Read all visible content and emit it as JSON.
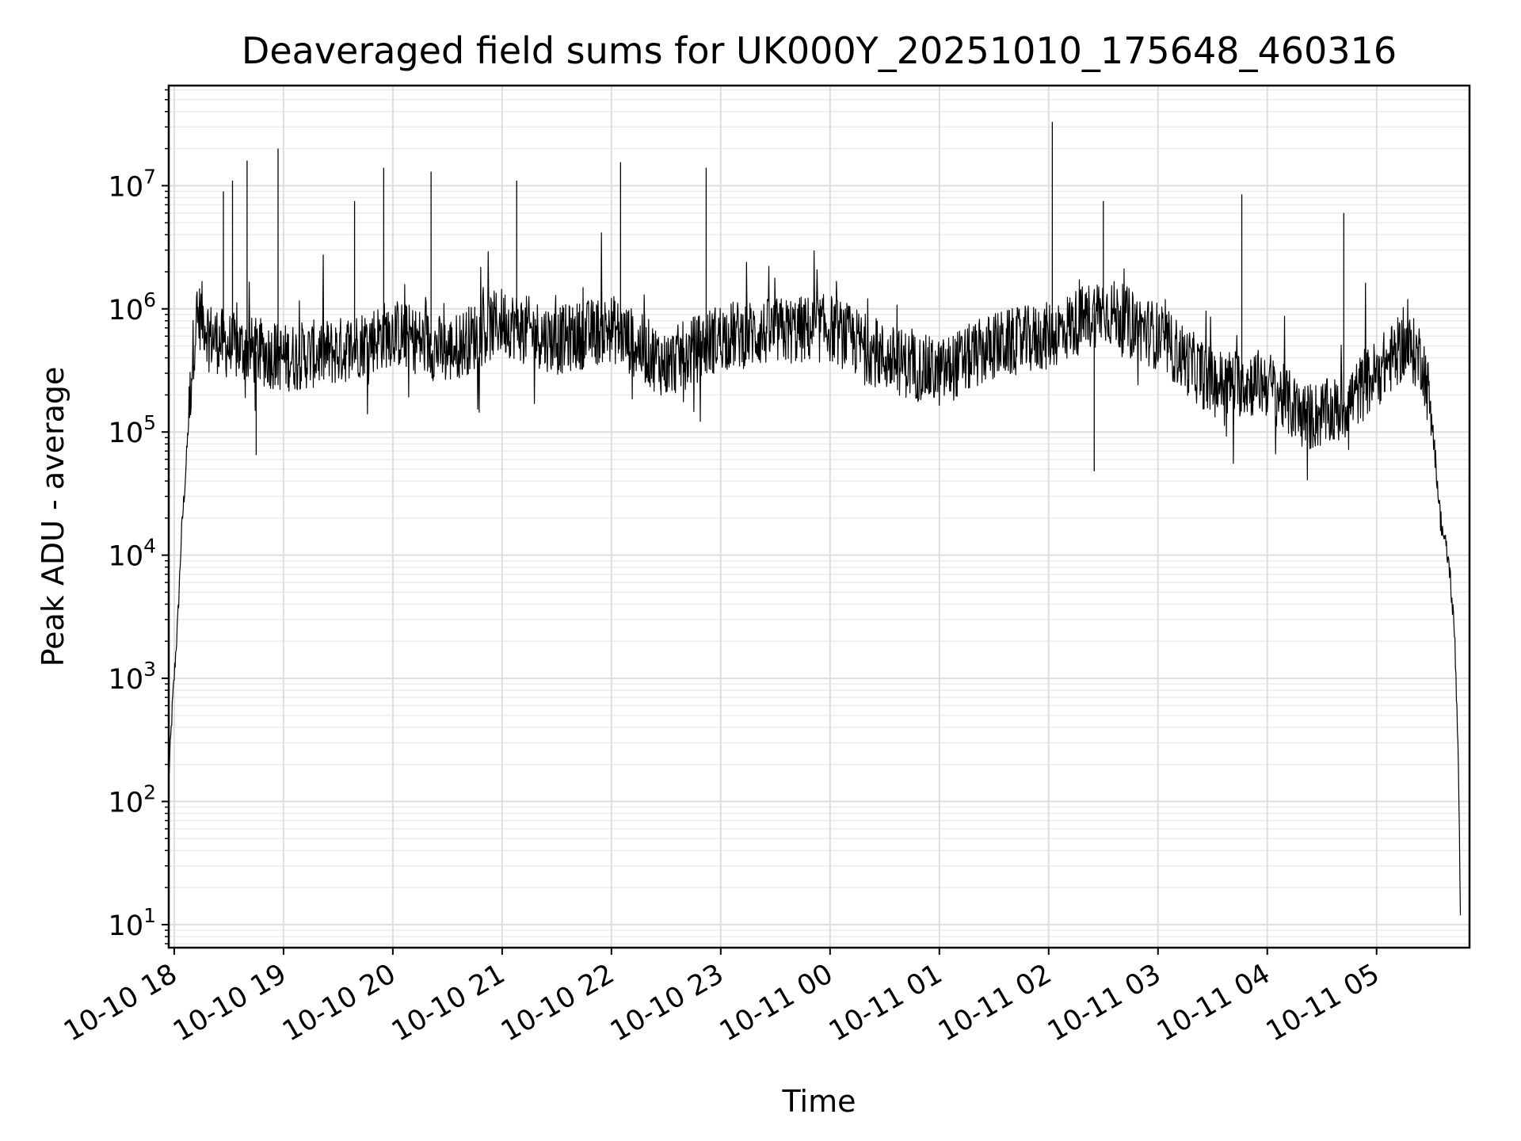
{
  "chart_data": {
    "type": "line",
    "title": "Deaveraged field sums for UK000Y_20251010_175648_460316",
    "xlabel": "Time",
    "ylabel": "Peak ADU - average",
    "y_scale": "log",
    "ylim": [
      6.5,
      65000000
    ],
    "xlim": [
      "2025-10-10 17:57",
      "2025-10-11 05:51"
    ],
    "grid": true,
    "x_ticks": [
      "10-10 18",
      "10-10 19",
      "10-10 20",
      "10-10 21",
      "10-10 22",
      "10-10 23",
      "10-11 00",
      "10-11 01",
      "10-11 02",
      "10-11 03",
      "10-11 04",
      "10-11 05"
    ],
    "y_ticks": [
      {
        "base": "10",
        "exp": "1",
        "value": 10
      },
      {
        "base": "10",
        "exp": "2",
        "value": 100
      },
      {
        "base": "10",
        "exp": "3",
        "value": 1000
      },
      {
        "base": "10",
        "exp": "4",
        "value": 10000
      },
      {
        "base": "10",
        "exp": "5",
        "value": 100000
      },
      {
        "base": "10",
        "exp": "6",
        "value": 1000000
      },
      {
        "base": "10",
        "exp": "7",
        "value": 10000000
      }
    ],
    "series": [
      {
        "color": "#000000",
        "x": [
          "2025-10-10 17:57",
          "2025-10-10 17:59",
          "2025-10-10 18:02",
          "2025-10-10 18:04",
          "2025-10-10 18:06",
          "2025-10-10 18:08",
          "2025-10-10 18:10",
          "2025-10-10 18:12",
          "2025-10-10 18:15",
          "2025-10-10 18:20",
          "2025-10-10 18:30",
          "2025-10-10 18:45",
          "2025-10-10 19:00",
          "2025-10-10 19:30",
          "2025-10-10 20:00",
          "2025-10-10 20:30",
          "2025-10-10 21:00",
          "2025-10-10 21:30",
          "2025-10-10 22:00",
          "2025-10-10 22:30",
          "2025-10-10 23:00",
          "2025-10-10 23:30",
          "2025-10-11 00:00",
          "2025-10-11 00:30",
          "2025-10-11 01:00",
          "2025-10-11 01:30",
          "2025-10-11 02:00",
          "2025-10-11 02:30",
          "2025-10-11 03:00",
          "2025-10-11 03:30",
          "2025-10-11 04:00",
          "2025-10-11 04:20",
          "2025-10-11 04:40",
          "2025-10-11 05:00",
          "2025-10-11 05:15",
          "2025-10-11 05:25",
          "2025-10-11 05:30",
          "2025-10-11 05:35",
          "2025-10-11 05:40",
          "2025-10-11 05:43",
          "2025-10-11 05:45",
          "2025-10-11 05:46"
        ],
        "y": [
          150,
          600,
          3000,
          15000,
          40000,
          130000,
          400000,
          800000,
          900000,
          600000,
          500000,
          450000,
          400000,
          450000,
          650000,
          450000,
          800000,
          550000,
          700000,
          350000,
          600000,
          650000,
          700000,
          400000,
          300000,
          500000,
          600000,
          1000000,
          600000,
          250000,
          250000,
          130000,
          150000,
          300000,
          500000,
          400000,
          150000,
          20000,
          8000,
          2000,
          200,
          10
        ]
      }
    ],
    "spikes": [
      {
        "x": "2025-10-10 18:27",
        "y": 9000000
      },
      {
        "x": "2025-10-10 18:32",
        "y": 11000000
      },
      {
        "x": "2025-10-10 18:40",
        "y": 16000000
      },
      {
        "x": "2025-10-10 18:45",
        "y": 65000
      },
      {
        "x": "2025-10-10 18:57",
        "y": 20000000
      },
      {
        "x": "2025-10-10 19:39",
        "y": 7500000
      },
      {
        "x": "2025-10-10 19:55",
        "y": 14000000
      },
      {
        "x": "2025-10-10 20:21",
        "y": 13000000
      },
      {
        "x": "2025-10-10 21:08",
        "y": 11000000
      },
      {
        "x": "2025-10-10 22:05",
        "y": 15500000
      },
      {
        "x": "2025-10-10 22:52",
        "y": 14000000
      },
      {
        "x": "2025-10-11 02:02",
        "y": 33000000
      },
      {
        "x": "2025-10-11 02:25",
        "y": 48000
      },
      {
        "x": "2025-10-11 02:30",
        "y": 7500000
      },
      {
        "x": "2025-10-11 03:46",
        "y": 8500000
      },
      {
        "x": "2025-10-11 04:42",
        "y": 6000000
      }
    ]
  }
}
